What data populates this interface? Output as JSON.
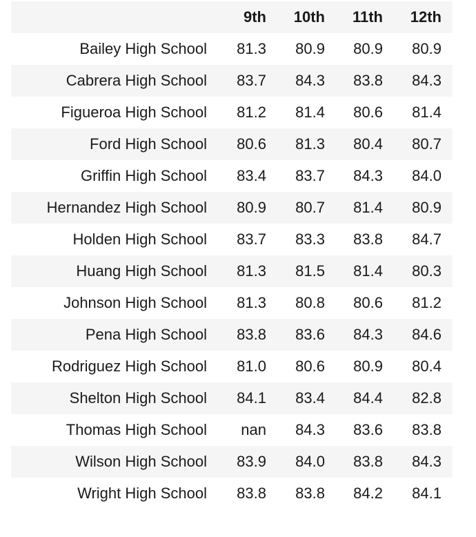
{
  "table": {
    "index_header": "",
    "columns": [
      "9th",
      "10th",
      "11th",
      "12th"
    ],
    "rows": [
      {
        "school": "Bailey High School",
        "values": [
          "81.3",
          "80.9",
          "80.9",
          "80.9"
        ]
      },
      {
        "school": "Cabrera High School",
        "values": [
          "83.7",
          "84.3",
          "83.8",
          "84.3"
        ]
      },
      {
        "school": "Figueroa High School",
        "values": [
          "81.2",
          "81.4",
          "80.6",
          "81.4"
        ]
      },
      {
        "school": "Ford High School",
        "values": [
          "80.6",
          "81.3",
          "80.4",
          "80.7"
        ]
      },
      {
        "school": "Griffin High School",
        "values": [
          "83.4",
          "83.7",
          "84.3",
          "84.0"
        ]
      },
      {
        "school": "Hernandez High School",
        "values": [
          "80.9",
          "80.7",
          "81.4",
          "80.9"
        ]
      },
      {
        "school": "Holden High School",
        "values": [
          "83.7",
          "83.3",
          "83.8",
          "84.7"
        ]
      },
      {
        "school": "Huang High School",
        "values": [
          "81.3",
          "81.5",
          "81.4",
          "80.3"
        ]
      },
      {
        "school": "Johnson High School",
        "values": [
          "81.3",
          "80.8",
          "80.6",
          "81.2"
        ]
      },
      {
        "school": "Pena High School",
        "values": [
          "83.8",
          "83.6",
          "84.3",
          "84.6"
        ]
      },
      {
        "school": "Rodriguez High School",
        "values": [
          "81.0",
          "80.6",
          "80.9",
          "80.4"
        ]
      },
      {
        "school": "Shelton High School",
        "values": [
          "84.1",
          "83.4",
          "84.4",
          "82.8"
        ]
      },
      {
        "school": "Thomas High School",
        "values": [
          "nan",
          "84.3",
          "83.6",
          "83.8"
        ]
      },
      {
        "school": "Wilson High School",
        "values": [
          "83.9",
          "84.0",
          "83.8",
          "84.3"
        ]
      },
      {
        "school": "Wright High School",
        "values": [
          "83.8",
          "83.8",
          "84.2",
          "84.1"
        ]
      }
    ]
  },
  "colors": {
    "stripe": "#f5f5f5",
    "background": "#ffffff",
    "text": "#1a1a1a"
  }
}
